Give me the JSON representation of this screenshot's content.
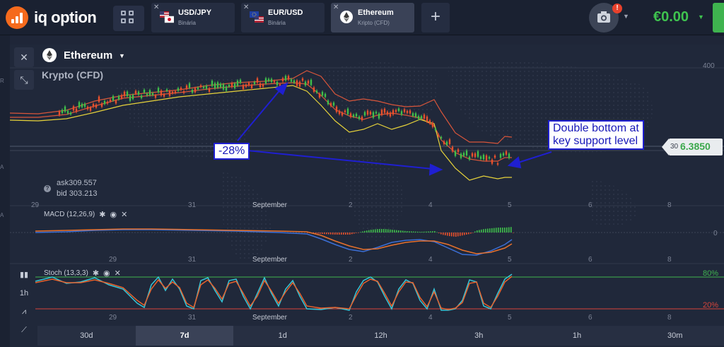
{
  "header": {
    "logo_text": "iq option",
    "tabs": [
      {
        "title": "USD/JPY",
        "subtitle": "Binária",
        "active": false
      },
      {
        "title": "EUR/USD",
        "subtitle": "Binária",
        "active": false
      },
      {
        "title": "Ethereum",
        "subtitle": "Kripto (CFD)",
        "active": true
      }
    ],
    "add_tab_label": "+",
    "notification_badge": "!",
    "balance": "€0.00"
  },
  "left_edge_labels": [
    "R",
    "A",
    "A"
  ],
  "asset": {
    "name": "Ethereum",
    "type": "Krypto (CFD)",
    "ask": "ask309.557",
    "bid": "bid 303.213"
  },
  "price_tag": {
    "prefix": "30",
    "value": "6.3850",
    "color": "#3aa84b"
  },
  "axis": {
    "y_top_label": "400",
    "macd_zero": "0",
    "stoch_high": "80%",
    "stoch_low": "20%",
    "x_labels": [
      "29",
      "31",
      "September",
      "2",
      "4",
      "5",
      "6",
      "8"
    ]
  },
  "indicators": {
    "macd_label": "MACD (12,26,9)",
    "stoch_label": "Stoch (13,3,3)"
  },
  "annotations": {
    "drop": "-28%",
    "double_bottom_line1": "Double bottom at",
    "double_bottom_line2": "key support level"
  },
  "tools": {
    "period": "1h"
  },
  "timeframes": [
    "30d",
    "7d",
    "1d",
    "12h",
    "3h",
    "1h",
    "30m"
  ],
  "active_timeframe": "7d",
  "colors": {
    "candle_up": "#3fbf4a",
    "candle_down": "#e8502c",
    "band_outer": "#d8553a",
    "band_inner": "#e6d23a",
    "macd_line": "#3b6fd6",
    "signal_line": "#e8712c",
    "stoch_k": "#35c6d8",
    "stoch_d": "#e8612c",
    "level_80": "#3fb34f",
    "level_20": "#d8453a",
    "annotation": "#1f1fd1"
  }
}
